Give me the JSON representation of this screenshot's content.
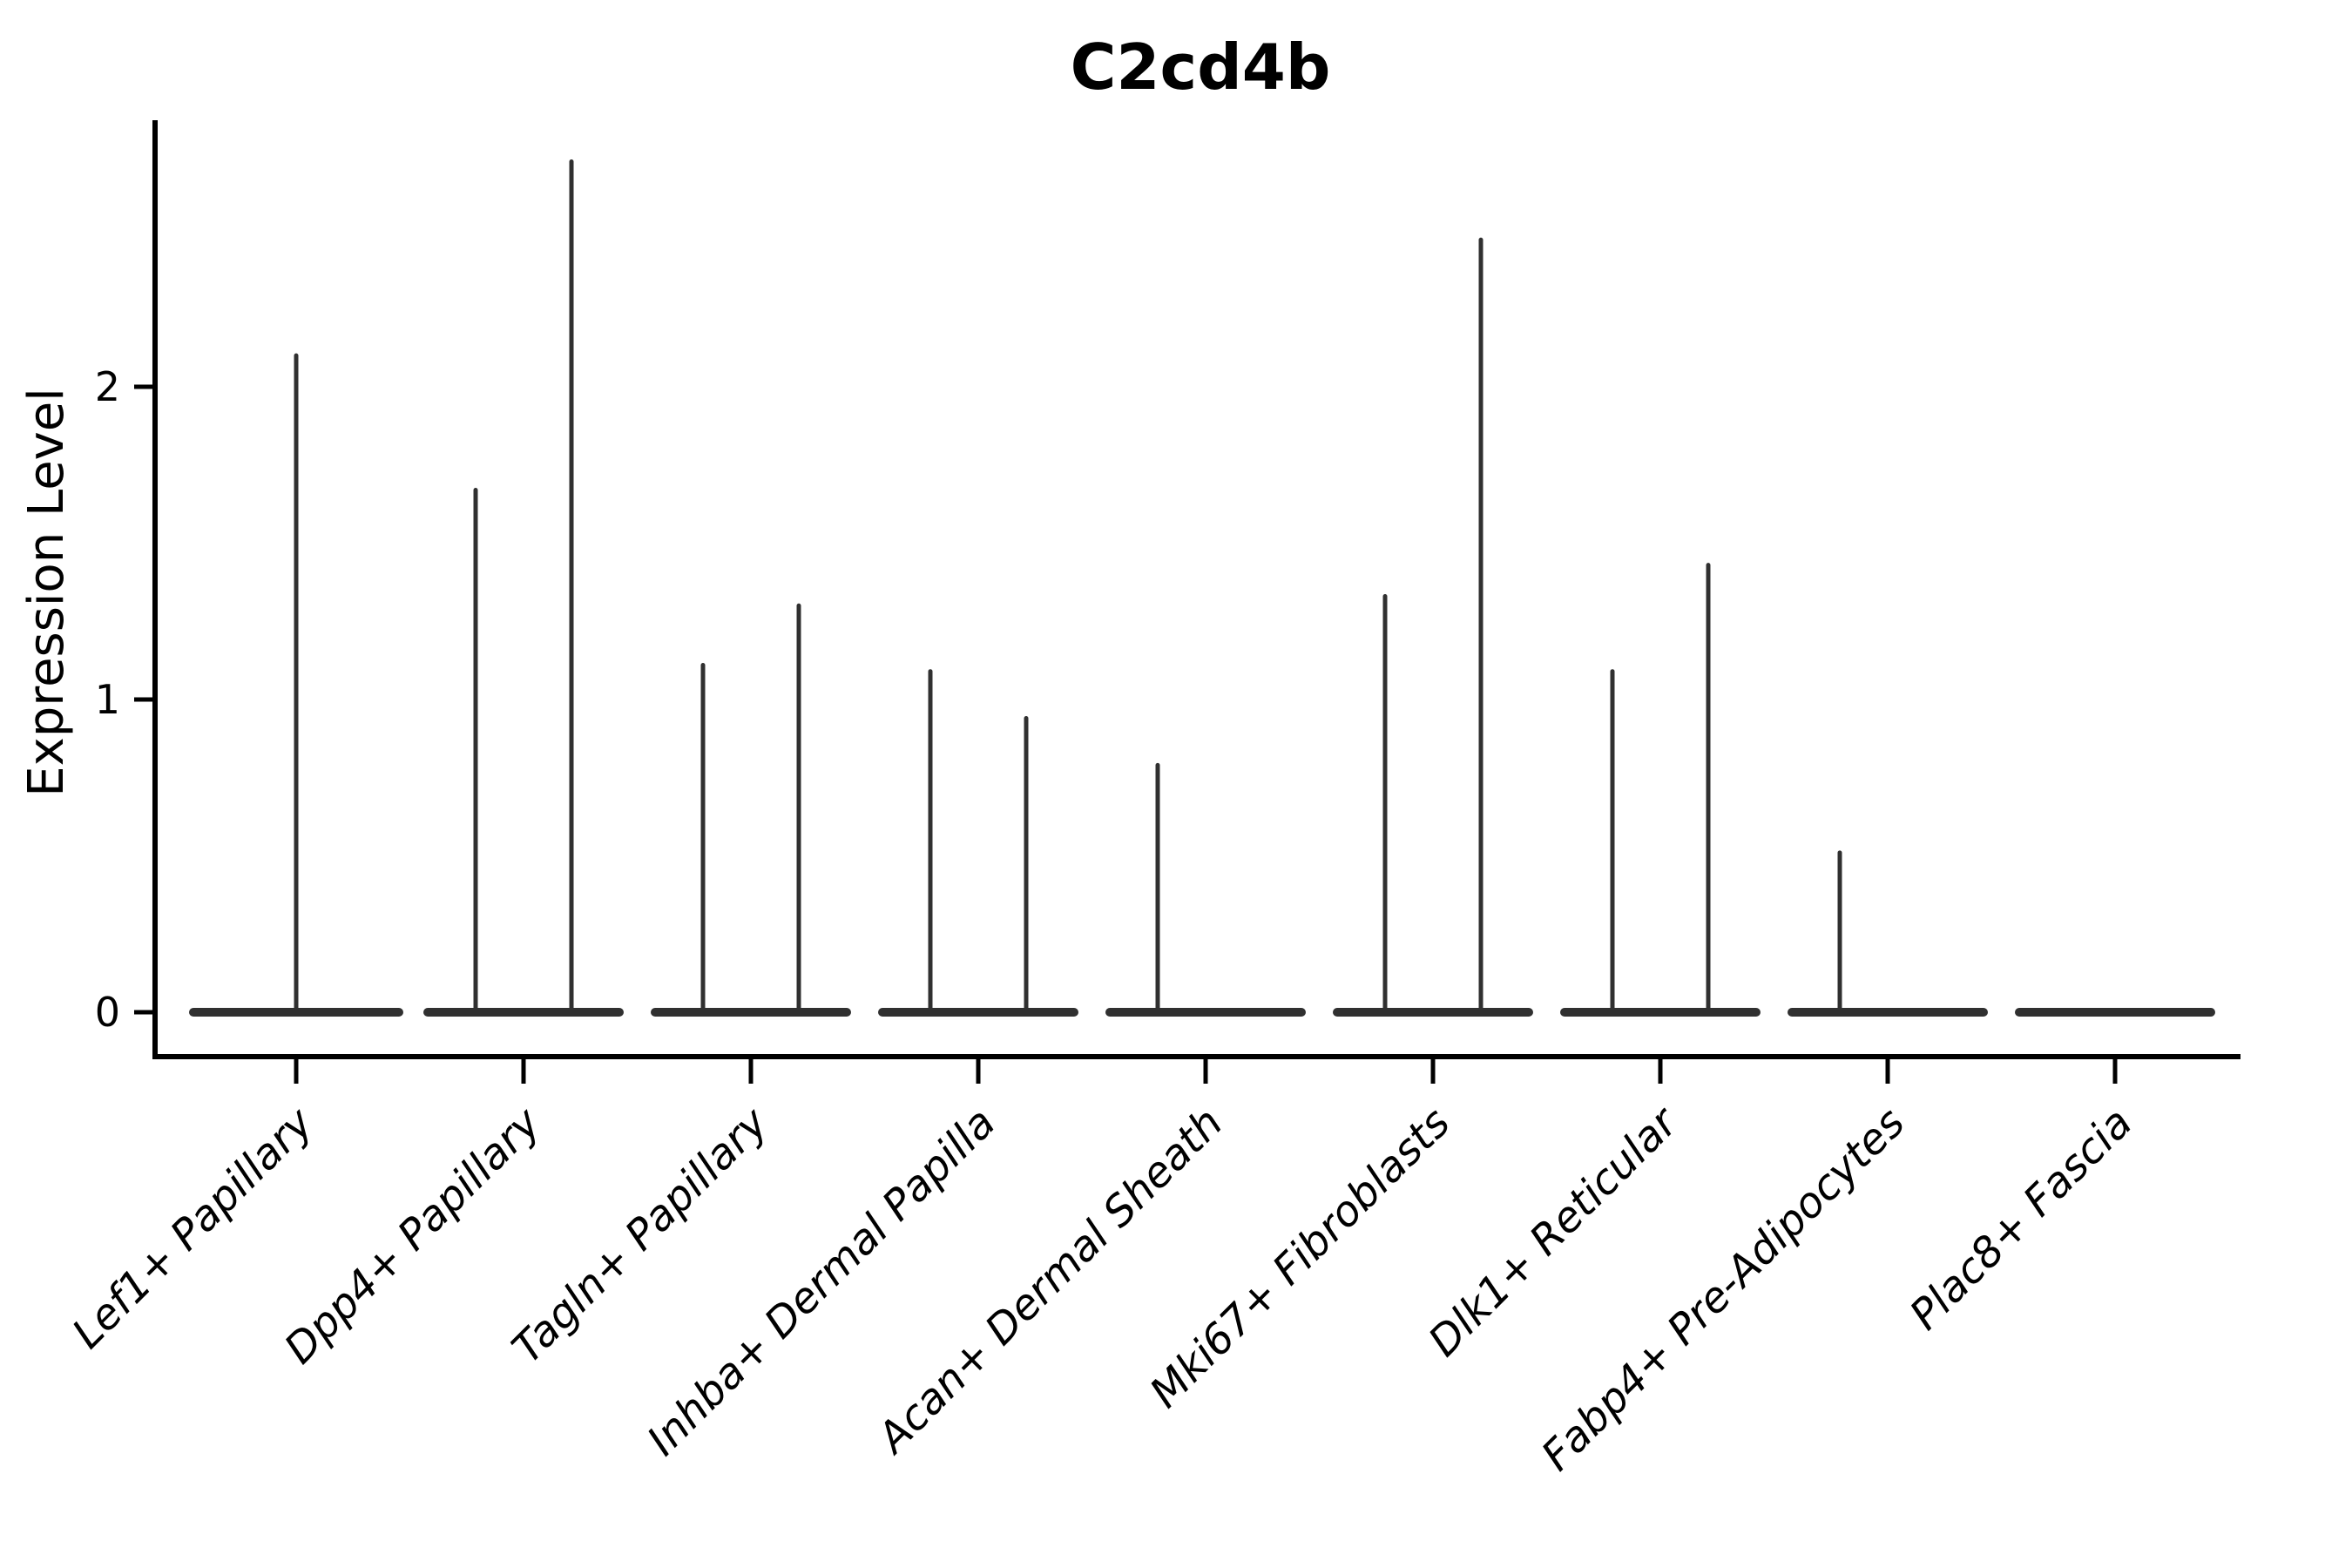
{
  "figure": {
    "background": "#ffffff"
  },
  "chart_data": {
    "type": "violin",
    "title": "C2cd4b",
    "ylabel": "Expression Level",
    "xlabel": "",
    "yticks": [
      0,
      1,
      2
    ],
    "ylim": [
      -0.15,
      2.86
    ],
    "grid": false,
    "legend": "none",
    "axis_color": "#000000",
    "line_color": "#303030",
    "violin_style": "flat-zero-base-with-thin-spike-to-max",
    "groups": [
      {
        "label": "Lef1+ Papillary",
        "layout": "single",
        "violins": [
          {
            "max_expression": 2.1
          }
        ]
      },
      {
        "label": "Dpp4+ Papillary",
        "layout": "split",
        "violins": [
          {
            "max_expression": 1.67
          },
          {
            "max_expression": 2.72
          }
        ]
      },
      {
        "label": "Tagln+ Papillary",
        "layout": "split",
        "violins": [
          {
            "max_expression": 1.11
          },
          {
            "max_expression": 1.3
          }
        ]
      },
      {
        "label": "Inhba+ Dermal Papilla",
        "layout": "split",
        "violins": [
          {
            "max_expression": 1.09
          },
          {
            "max_expression": 0.94
          }
        ]
      },
      {
        "label": "Acan+ Dermal Sheath",
        "layout": "split",
        "violins": [
          {
            "max_expression": 0.79
          },
          {
            "max_expression": 0
          }
        ]
      },
      {
        "label": "Mki67+ Fibroblasts",
        "layout": "split",
        "violins": [
          {
            "max_expression": 1.33
          },
          {
            "max_expression": 2.47
          }
        ]
      },
      {
        "label": "Dlk1+ Reticular",
        "layout": "split",
        "violins": [
          {
            "max_expression": 1.09
          },
          {
            "max_expression": 1.43
          }
        ]
      },
      {
        "label": "Fabp4+ Pre-Adipocytes",
        "layout": "split",
        "violins": [
          {
            "max_expression": 0.51
          },
          {
            "max_expression": 0
          }
        ]
      },
      {
        "label": "Plac8+ Fascia",
        "layout": "split",
        "violins": [
          {
            "max_expression": 0
          },
          {
            "max_expression": 0
          }
        ]
      }
    ]
  }
}
